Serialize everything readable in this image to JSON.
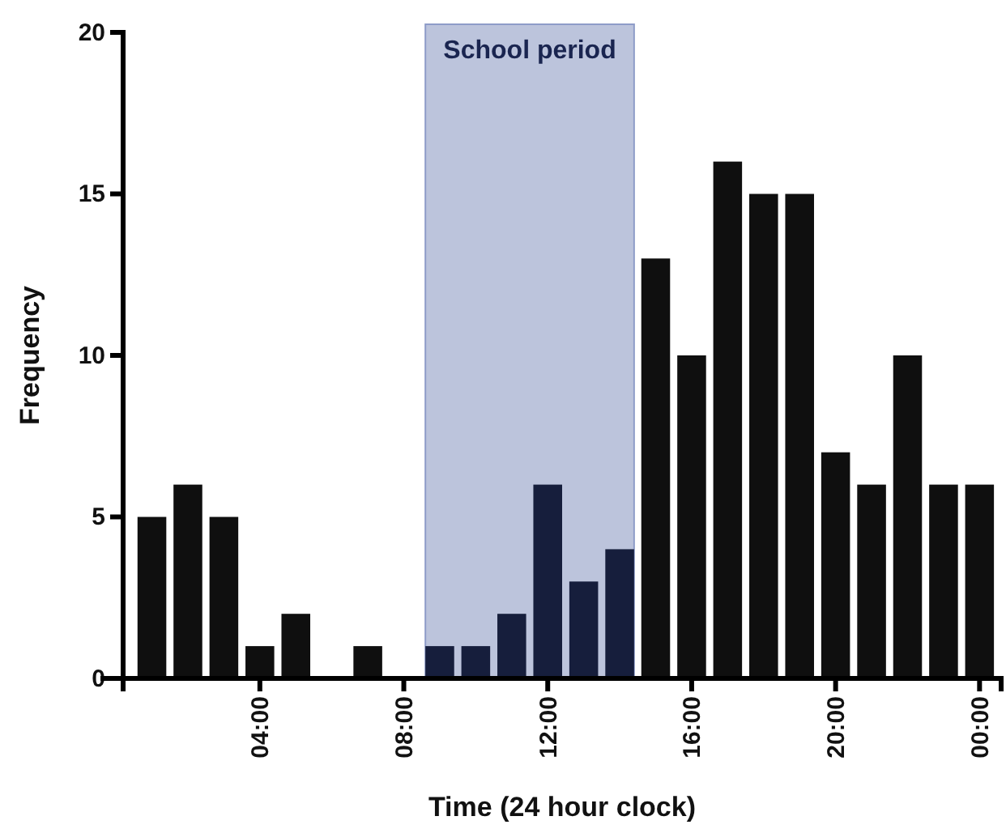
{
  "chart_data": {
    "type": "bar",
    "xlabel": "Time (24 hour clock)",
    "ylabel": "Frequency",
    "x": [
      1,
      2,
      3,
      4,
      5,
      6,
      7,
      8,
      9,
      10,
      11,
      12,
      13,
      14,
      15,
      16,
      17,
      18,
      19,
      20,
      21,
      22,
      23,
      24
    ],
    "values": [
      5,
      6,
      5,
      1,
      2,
      0,
      1,
      0,
      1,
      1,
      2,
      6,
      3,
      4,
      13,
      10,
      16,
      15,
      15,
      7,
      6,
      10,
      6,
      6
    ],
    "colors": [
      "#0f0f0f",
      "#0f0f0f",
      "#0f0f0f",
      "#0f0f0f",
      "#0f0f0f",
      "#0f0f0f",
      "#0f0f0f",
      "#0f0f0f",
      "#161e3c",
      "#161e3c",
      "#161e3c",
      "#161e3c",
      "#161e3c",
      "#161e3c",
      "#0f0f0f",
      "#0f0f0f",
      "#0f0f0f",
      "#0f0f0f",
      "#0f0f0f",
      "#0f0f0f",
      "#0f0f0f",
      "#0f0f0f",
      "#0f0f0f",
      "#0f0f0f"
    ],
    "xlim": [
      0.2,
      24.6
    ],
    "xticks": [
      {
        "value": 4,
        "label": "04:00"
      },
      {
        "value": 8,
        "label": "08:00"
      },
      {
        "value": 12,
        "label": "12:00"
      },
      {
        "value": 16,
        "label": "16:00"
      },
      {
        "value": 20,
        "label": "20:00"
      },
      {
        "value": 24,
        "label": "00:00"
      }
    ],
    "ylim": [
      0,
      20
    ],
    "yticks": [
      0,
      5,
      10,
      15,
      20
    ],
    "bands": [
      {
        "axis": "x",
        "from": 8.6,
        "to": 14.4,
        "label": "School period",
        "color": "#bcc4dc"
      }
    ],
    "grid": false
  }
}
